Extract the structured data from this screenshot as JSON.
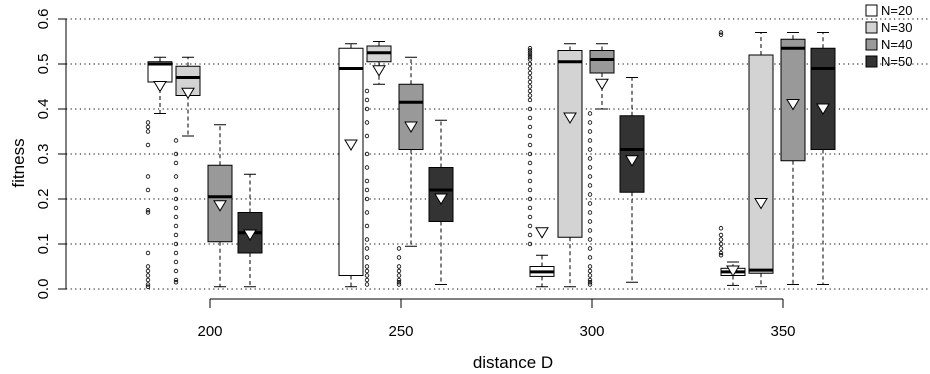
{
  "chart_data": {
    "type": "box",
    "xlabel": "distance D",
    "ylabel": "fitness",
    "ylim": [
      0,
      0.6
    ],
    "yticks": [
      "0.0",
      "0.1",
      "0.2",
      "0.3",
      "0.4",
      "0.5",
      "0.6"
    ],
    "categories": [
      "200",
      "250",
      "300",
      "350"
    ],
    "grid": "horizontal dotted",
    "legend_position": "top-right",
    "series": [
      {
        "name": "N=20",
        "color": "#ffffff",
        "median_color": "#000000",
        "boxes": [
          {
            "min": 0.39,
            "q1": 0.46,
            "median": 0.5,
            "q3": 0.505,
            "max": 0.515,
            "mean": 0.45,
            "outliers": [
              0.37,
              0.36,
              0.35,
              0.32,
              0.25,
              0.22,
              0.175,
              0.17,
              0.08,
              0.05,
              0.04,
              0.03,
              0.02,
              0.01,
              0.005
            ]
          },
          {
            "min": 0.005,
            "q1": 0.03,
            "median": 0.49,
            "q3": 0.535,
            "max": 0.545,
            "mean": 0.32,
            "outliers": []
          },
          {
            "min": 0.005,
            "q1": 0.028,
            "median": 0.038,
            "q3": 0.05,
            "max": 0.075,
            "mean": 0.125,
            "outliers": [
              0.535,
              0.53,
              0.525,
              0.52,
              0.515,
              0.51,
              0.5,
              0.49,
              0.48,
              0.47,
              0.46,
              0.45,
              0.44,
              0.43,
              0.42,
              0.4,
              0.38,
              0.36,
              0.34,
              0.32,
              0.3,
              0.28,
              0.26,
              0.24,
              0.22,
              0.2,
              0.18,
              0.16,
              0.14,
              0.12,
              0.1
            ]
          },
          {
            "min": 0.008,
            "q1": 0.03,
            "median": 0.038,
            "q3": 0.046,
            "max": 0.06,
            "mean": 0.04,
            "outliers": [
              0.57,
              0.565,
              0.135,
              0.12,
              0.11,
              0.1,
              0.09,
              0.08,
              0.075
            ]
          }
        ]
      },
      {
        "name": "N=30",
        "color": "#d3d3d3",
        "median_color": "#000000",
        "boxes": [
          {
            "min": 0.34,
            "q1": 0.43,
            "median": 0.47,
            "q3": 0.495,
            "max": 0.515,
            "mean": 0.435,
            "outliers": [
              0.33,
              0.3,
              0.28,
              0.25,
              0.22,
              0.2,
              0.18,
              0.16,
              0.14,
              0.12,
              0.1,
              0.08,
              0.06,
              0.04,
              0.02,
              0.015
            ]
          },
          {
            "min": 0.455,
            "q1": 0.505,
            "median": 0.525,
            "q3": 0.54,
            "max": 0.55,
            "mean": 0.485,
            "outliers": [
              0.44,
              0.42,
              0.4,
              0.37,
              0.34,
              0.3,
              0.27,
              0.24,
              0.22,
              0.2,
              0.17,
              0.14,
              0.11,
              0.09,
              0.07,
              0.05,
              0.04,
              0.03,
              0.02,
              0.01
            ]
          },
          {
            "min": 0.005,
            "q1": 0.115,
            "median": 0.505,
            "q3": 0.53,
            "max": 0.545,
            "mean": 0.38,
            "outliers": []
          },
          {
            "min": 0.005,
            "q1": 0.035,
            "median": 0.042,
            "q3": 0.52,
            "max": 0.57,
            "mean": 0.19,
            "outliers": []
          }
        ]
      },
      {
        "name": "N=40",
        "color": "#999999",
        "median_color": "#000000",
        "boxes": [
          {
            "min": 0.005,
            "q1": 0.105,
            "median": 0.205,
            "q3": 0.275,
            "max": 0.365,
            "mean": 0.185,
            "outliers": []
          },
          {
            "min": 0.095,
            "q1": 0.31,
            "median": 0.415,
            "q3": 0.455,
            "max": 0.515,
            "mean": 0.36,
            "outliers": [
              0.09,
              0.07,
              0.05,
              0.04,
              0.03,
              0.02,
              0.015,
              0.01
            ]
          },
          {
            "min": 0.4,
            "q1": 0.48,
            "median": 0.51,
            "q3": 0.53,
            "max": 0.545,
            "mean": 0.455,
            "outliers": [
              0.39,
              0.37,
              0.35,
              0.33,
              0.31,
              0.29,
              0.27,
              0.25,
              0.23,
              0.21,
              0.19,
              0.17,
              0.15,
              0.13,
              0.11,
              0.09,
              0.07,
              0.05,
              0.04,
              0.03,
              0.02,
              0.015,
              0.01
            ]
          },
          {
            "min": 0.01,
            "q1": 0.285,
            "median": 0.535,
            "q3": 0.555,
            "max": 0.57,
            "mean": 0.41,
            "outliers": []
          }
        ]
      },
      {
        "name": "N=50",
        "color": "#333333",
        "median_color": "#000000",
        "boxes": [
          {
            "min": 0.005,
            "q1": 0.08,
            "median": 0.125,
            "q3": 0.17,
            "max": 0.255,
            "mean": 0.12,
            "outliers": []
          },
          {
            "min": 0.01,
            "q1": 0.15,
            "median": 0.22,
            "q3": 0.27,
            "max": 0.375,
            "mean": 0.2,
            "outliers": []
          },
          {
            "min": 0.015,
            "q1": 0.215,
            "median": 0.31,
            "q3": 0.385,
            "max": 0.47,
            "mean": 0.285,
            "outliers": []
          },
          {
            "min": 0.01,
            "q1": 0.31,
            "median": 0.49,
            "q3": 0.535,
            "max": 0.57,
            "mean": 0.4,
            "outliers": []
          }
        ]
      }
    ]
  }
}
